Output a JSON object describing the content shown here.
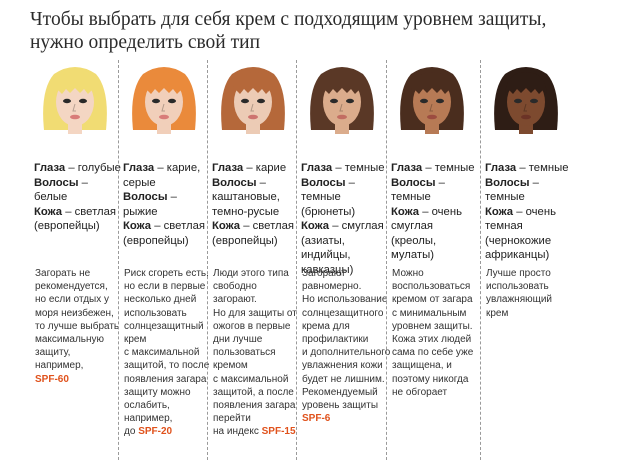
{
  "title": {
    "line1": "Чтобы выбрать для себя крем с подходящим уровнем защиты,",
    "line2": "нужно определить свой тип"
  },
  "colors": {
    "spf": "#e0521c",
    "separator": "#9a9a9a"
  },
  "labels": {
    "eyes": "Глаза",
    "hair": "Волосы",
    "skin": "Кожа"
  },
  "types": [
    {
      "hair_color": "#f1dc73",
      "skin_color": "#f4d6c3",
      "lip_color": "#d87c79",
      "attr_lines": [
        {
          "label": "Глаза",
          "text": " – голубые"
        },
        {
          "label": "Волосы",
          "text": " – белые"
        },
        {
          "label": "Кожа",
          "text": " – светлая"
        },
        {
          "label": "",
          "text": "(европейцы)"
        }
      ],
      "advice_lines": [
        "Загорать не",
        "рекомендуется,",
        "но если отдых у",
        "моря неизбежен,",
        "то лучше выбрать",
        "максимальную",
        "защиту,",
        "например,"
      ],
      "advice_prefix": "",
      "spf": "SPF-60"
    },
    {
      "hair_color": "#ea8a3b",
      "skin_color": "#f1cfba",
      "lip_color": "#d87c79",
      "attr_lines": [
        {
          "label": "Глаза",
          "text": " – карие,"
        },
        {
          "label": "",
          "text": "серые"
        },
        {
          "label": "Волосы",
          "text": " – рыжие"
        },
        {
          "label": "Кожа",
          "text": " – светлая"
        },
        {
          "label": "",
          "text": "(европейцы)"
        }
      ],
      "advice_lines": [
        "Риск сгореть есть,",
        "но если в первые",
        "несколько дней",
        "использовать",
        "солнцезащитный",
        "крем",
        "с максимальной",
        "защитой, то после",
        "появления загара",
        "защиту можно",
        "ослабить,",
        "например,"
      ],
      "advice_prefix": "до ",
      "spf": "SPF-20"
    },
    {
      "hair_color": "#b5683a",
      "skin_color": "#eccbb5",
      "lip_color": "#cd7470",
      "attr_lines": [
        {
          "label": "Глаза",
          "text": " – карие"
        },
        {
          "label": "Волосы",
          "text": " –"
        },
        {
          "label": "",
          "text": "каштановые,"
        },
        {
          "label": "",
          "text": "темно-русые"
        },
        {
          "label": "Кожа",
          "text": " – светлая"
        },
        {
          "label": "",
          "text": "(европейцы)"
        }
      ],
      "advice_lines": [
        "Люди этого типа",
        "свободно",
        "загорают.",
        "Но для защиты от",
        "ожогов в первые",
        "дни лучше",
        "пользоваться",
        "кремом",
        "с максимальной",
        "защитой, а после",
        "появления загара",
        "перейти"
      ],
      "advice_prefix": "на индекс ",
      "spf": "SPF-15"
    },
    {
      "hair_color": "#5a3826",
      "skin_color": "#dbac8c",
      "lip_color": "#c26d62",
      "attr_lines": [
        {
          "label": "Глаза",
          "text": " – темные"
        },
        {
          "label": "Волосы",
          "text": " – темные"
        },
        {
          "label": "",
          "text": "(брюнеты)"
        },
        {
          "label": "Кожа",
          "text": " – смуглая"
        },
        {
          "label": "",
          "text": "(азиаты, индийцы,"
        },
        {
          "label": "",
          "text": "кавказцы)"
        }
      ],
      "advice_lines": [
        "Загорают",
        "равномерно.",
        "Но использование",
        "солнцезащитного",
        "крема для",
        "профилактики",
        "и дополнительного",
        "увлажнения кожи",
        "будет не лишним.",
        "Рекомендуемый",
        "уровень защиты"
      ],
      "advice_prefix": "",
      "spf": "SPF-6"
    },
    {
      "hair_color": "#4a2d1e",
      "skin_color": "#b77a55",
      "lip_color": "#9c4c40",
      "attr_lines": [
        {
          "label": "Глаза",
          "text": " – темные"
        },
        {
          "label": "Волосы",
          "text": " – темные"
        },
        {
          "label": "Кожа",
          "text": " – очень"
        },
        {
          "label": "",
          "text": "смуглая (креолы,"
        },
        {
          "label": "",
          "text": "мулаты)"
        }
      ],
      "advice_lines": [
        "Можно",
        "воспользоваться",
        "кремом от загара",
        "с минимальным",
        "уровнем защиты.",
        "Кожа этих людей",
        "сама по себе уже",
        "защищена, и",
        "поэтому никогда",
        "не обгорает"
      ],
      "advice_prefix": "",
      "spf": ""
    },
    {
      "hair_color": "#2e1d15",
      "skin_color": "#7d4a2f",
      "lip_color": "#6b3326",
      "attr_lines": [
        {
          "label": "Глаза",
          "text": " – темные"
        },
        {
          "label": "Волосы",
          "text": " – темные"
        },
        {
          "label": "Кожа",
          "text": " – очень"
        },
        {
          "label": "",
          "text": "темная"
        },
        {
          "label": "",
          "text": "(чернокожие"
        },
        {
          "label": "",
          "text": "африканцы)"
        }
      ],
      "advice_lines": [
        "Лучше просто",
        "использовать",
        "увлажняющий",
        "крем"
      ],
      "advice_prefix": "",
      "spf": ""
    }
  ]
}
